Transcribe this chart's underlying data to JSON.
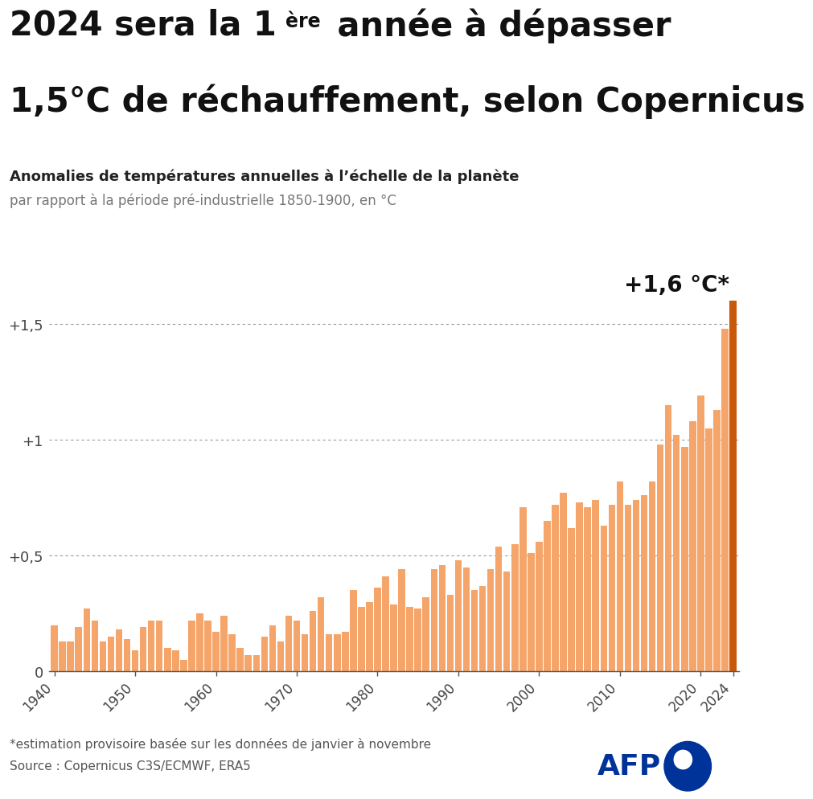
{
  "title_line1": "2024 sera la 1ère année à dépasser",
  "title_line2": "1,5°C de réchauffement, selon Copernicus",
  "subtitle1": "Anomalies de températures annuelles à l’échelle de la planète",
  "subtitle2": "par rapport à la période pré-industrielle 1850-1900, en °C",
  "annotation": "+1,6 °C*",
  "footnote1": "*estimation provisoire basée sur les données de janvier à novembre",
  "footnote2": "Source : Copernicus C3S/ECMWF, ERA5",
  "years": [
    1940,
    1941,
    1942,
    1943,
    1944,
    1945,
    1946,
    1947,
    1948,
    1949,
    1950,
    1951,
    1952,
    1953,
    1954,
    1955,
    1956,
    1957,
    1958,
    1959,
    1960,
    1961,
    1962,
    1963,
    1964,
    1965,
    1966,
    1967,
    1968,
    1969,
    1970,
    1971,
    1972,
    1973,
    1974,
    1975,
    1976,
    1977,
    1978,
    1979,
    1980,
    1981,
    1982,
    1983,
    1984,
    1985,
    1986,
    1987,
    1988,
    1989,
    1990,
    1991,
    1992,
    1993,
    1994,
    1995,
    1996,
    1997,
    1998,
    1999,
    2000,
    2001,
    2002,
    2003,
    2004,
    2005,
    2006,
    2007,
    2008,
    2009,
    2010,
    2011,
    2012,
    2013,
    2014,
    2015,
    2016,
    2017,
    2018,
    2019,
    2020,
    2021,
    2022,
    2023,
    2024
  ],
  "values": [
    0.2,
    0.13,
    0.13,
    0.19,
    0.27,
    0.22,
    0.13,
    0.15,
    0.18,
    0.14,
    0.09,
    0.19,
    0.22,
    0.22,
    0.1,
    0.09,
    0.05,
    0.22,
    0.25,
    0.22,
    0.17,
    0.24,
    0.16,
    0.1,
    0.07,
    0.07,
    0.15,
    0.2,
    0.13,
    0.24,
    0.22,
    0.16,
    0.26,
    0.32,
    0.16,
    0.16,
    0.17,
    0.35,
    0.28,
    0.3,
    0.36,
    0.41,
    0.29,
    0.44,
    0.28,
    0.27,
    0.32,
    0.44,
    0.46,
    0.33,
    0.48,
    0.45,
    0.35,
    0.37,
    0.44,
    0.54,
    0.43,
    0.55,
    0.71,
    0.51,
    0.56,
    0.65,
    0.72,
    0.77,
    0.62,
    0.73,
    0.71,
    0.74,
    0.63,
    0.72,
    0.82,
    0.72,
    0.74,
    0.76,
    0.82,
    0.98,
    1.15,
    1.02,
    0.97,
    1.08,
    1.19,
    1.05,
    1.13,
    1.48,
    1.6
  ],
  "bar_color": "#F5A56A",
  "bar_color_last": "#C8590A",
  "yticks": [
    0,
    0.5,
    1.0,
    1.5
  ],
  "ytick_labels": [
    "0",
    "+0,5",
    "+1",
    "+1,5"
  ],
  "ylim": [
    0,
    1.78
  ],
  "background_color": "#FFFFFF",
  "grid_color": "#999999",
  "text_color": "#333333",
  "axis_color": "#555555",
  "afp_blue": "#003399"
}
